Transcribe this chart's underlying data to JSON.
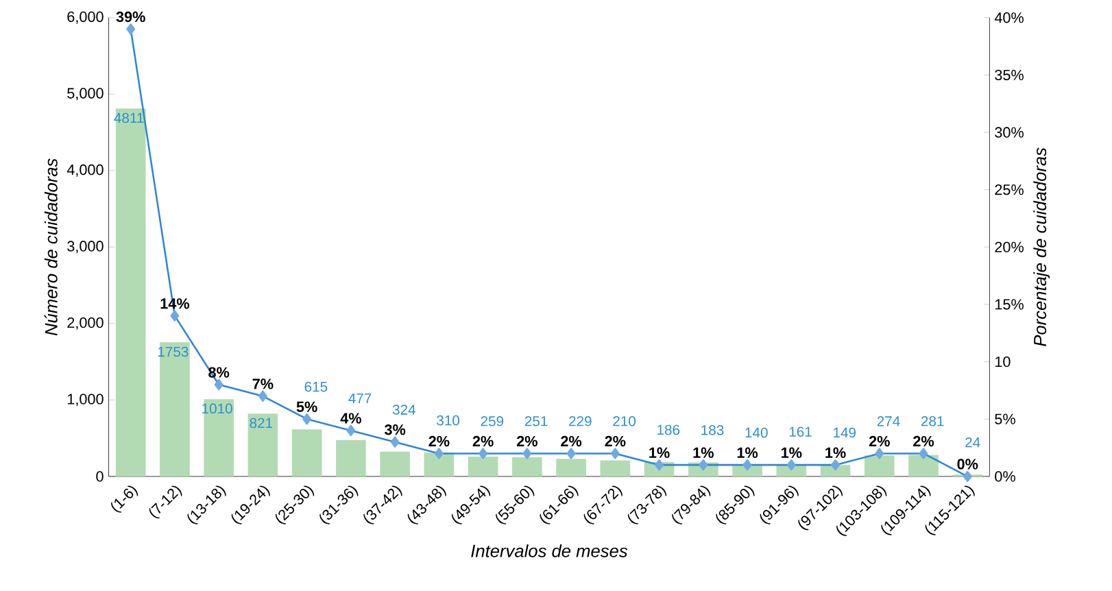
{
  "chart_data": {
    "type": "bar",
    "xlabel": "Intervalos de meses",
    "ylabel": "Número de cuidadoras",
    "y2label": "Porcentaje de cuidadoras",
    "marker": "diamond",
    "categories": [
      "(1-6)",
      "(7-12)",
      "(13-18)",
      "(19-24)",
      "(25-30)",
      "(31-36)",
      "(37-42)",
      "(43-48)",
      "(49-54)",
      "(55-60)",
      "(61-66)",
      "(67-72)",
      "(73-78)",
      "(79-84)",
      "(85-90)",
      "(91-96)",
      "(97-102)",
      "(103-108)",
      "(109-114)",
      "(115-121)"
    ],
    "series": [
      {
        "color": "#b3dbb3",
        "values": [
          4811,
          1753,
          1010,
          821,
          615,
          477,
          324,
          310,
          259,
          251,
          229,
          210,
          186,
          183,
          140,
          161,
          149,
          274,
          281,
          24
        ],
        "value_labels": [
          "4811",
          "1753",
          "1010",
          "821",
          "615",
          "477",
          "324",
          "310",
          "259",
          "251",
          "229",
          "210",
          "186",
          "183",
          "140",
          "161",
          "149",
          "274",
          "281",
          "24"
        ]
      },
      {
        "type": "line",
        "axis": "y2",
        "color": "#2f86d6",
        "values": [
          39,
          14,
          8,
          7,
          5,
          4,
          3,
          2,
          2,
          2,
          2,
          2,
          1,
          1,
          1,
          1,
          1,
          2,
          2,
          0
        ],
        "value_labels": [
          "39%",
          "14%",
          "8%",
          "7%",
          "5%",
          "4%",
          "3%",
          "2%",
          "2%",
          "2%",
          "2%",
          "2%",
          "1%",
          "1%",
          "1%",
          "1%",
          "1%",
          "2%",
          "2%",
          "0%"
        ]
      }
    ],
    "ylim": [
      0,
      6000
    ],
    "yticks": [
      0,
      {
        "value": 1000,
        "label": "1,000"
      },
      {
        "value": 2000,
        "label": "2,000"
      },
      {
        "value": 3000,
        "label": "3,000"
      },
      {
        "value": 4000,
        "label": "4,000"
      },
      {
        "value": 5000,
        "label": "5,000"
      },
      {
        "value": 6000,
        "label": "6,000"
      }
    ],
    "y2lim": [
      0,
      40
    ],
    "y2ticks": [
      {
        "value": 0,
        "label": "0%"
      },
      {
        "value": 5,
        "label": "5%"
      },
      {
        "value": 10,
        "label": "10"
      },
      {
        "value": 15,
        "label": "15%"
      },
      {
        "value": 20,
        "label": "20%"
      },
      {
        "value": 25,
        "label": "25%"
      },
      {
        "value": 30,
        "label": "30%"
      },
      {
        "value": 35,
        "label": "35%"
      },
      {
        "value": 40,
        "label": "40%"
      }
    ]
  }
}
